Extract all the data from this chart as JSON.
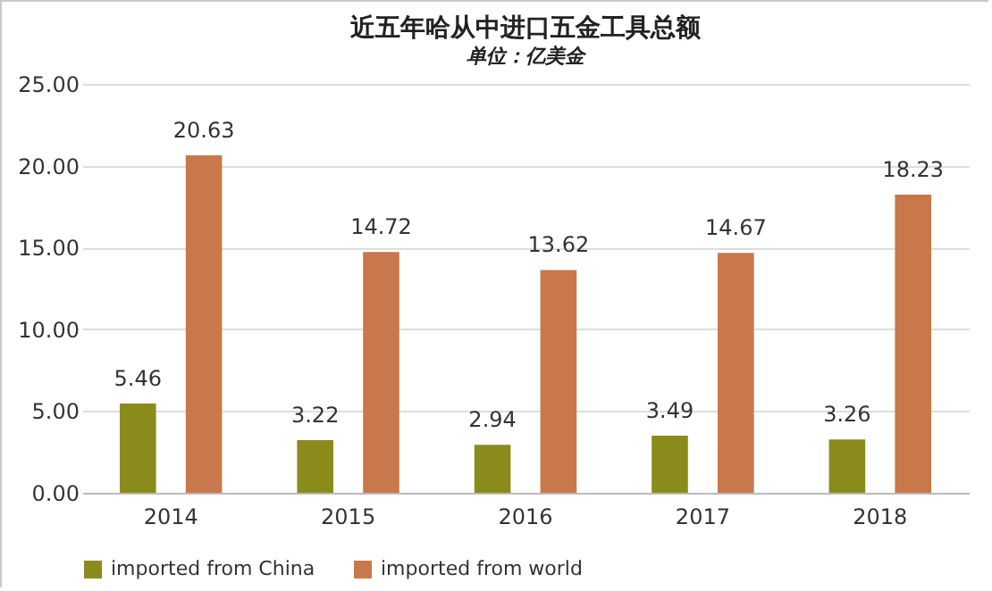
{
  "chart_data": {
    "type": "bar",
    "title": "近五年哈从中进口五金工具总额",
    "subtitle": "单位：亿美金",
    "categories": [
      "2014",
      "2015",
      "2016",
      "2017",
      "2018"
    ],
    "series": [
      {
        "name": "imported from China",
        "color": "#8b8b1c",
        "values": [
          5.46,
          3.22,
          2.94,
          3.49,
          3.26
        ]
      },
      {
        "name": "imported from world",
        "color": "#c8784a",
        "values": [
          20.63,
          14.72,
          13.62,
          14.67,
          18.23
        ]
      }
    ],
    "ylim": [
      0,
      25
    ],
    "yticks": [
      {
        "value": 0,
        "label": "0.00"
      },
      {
        "value": 5,
        "label": "5.00"
      },
      {
        "value": 10,
        "label": "10.00"
      },
      {
        "value": 15,
        "label": "15.00"
      },
      {
        "value": 20,
        "label": "20.00"
      },
      {
        "value": 25,
        "label": "25.00"
      }
    ],
    "grid": "y",
    "legend": "bottom",
    "data_labels": true
  }
}
